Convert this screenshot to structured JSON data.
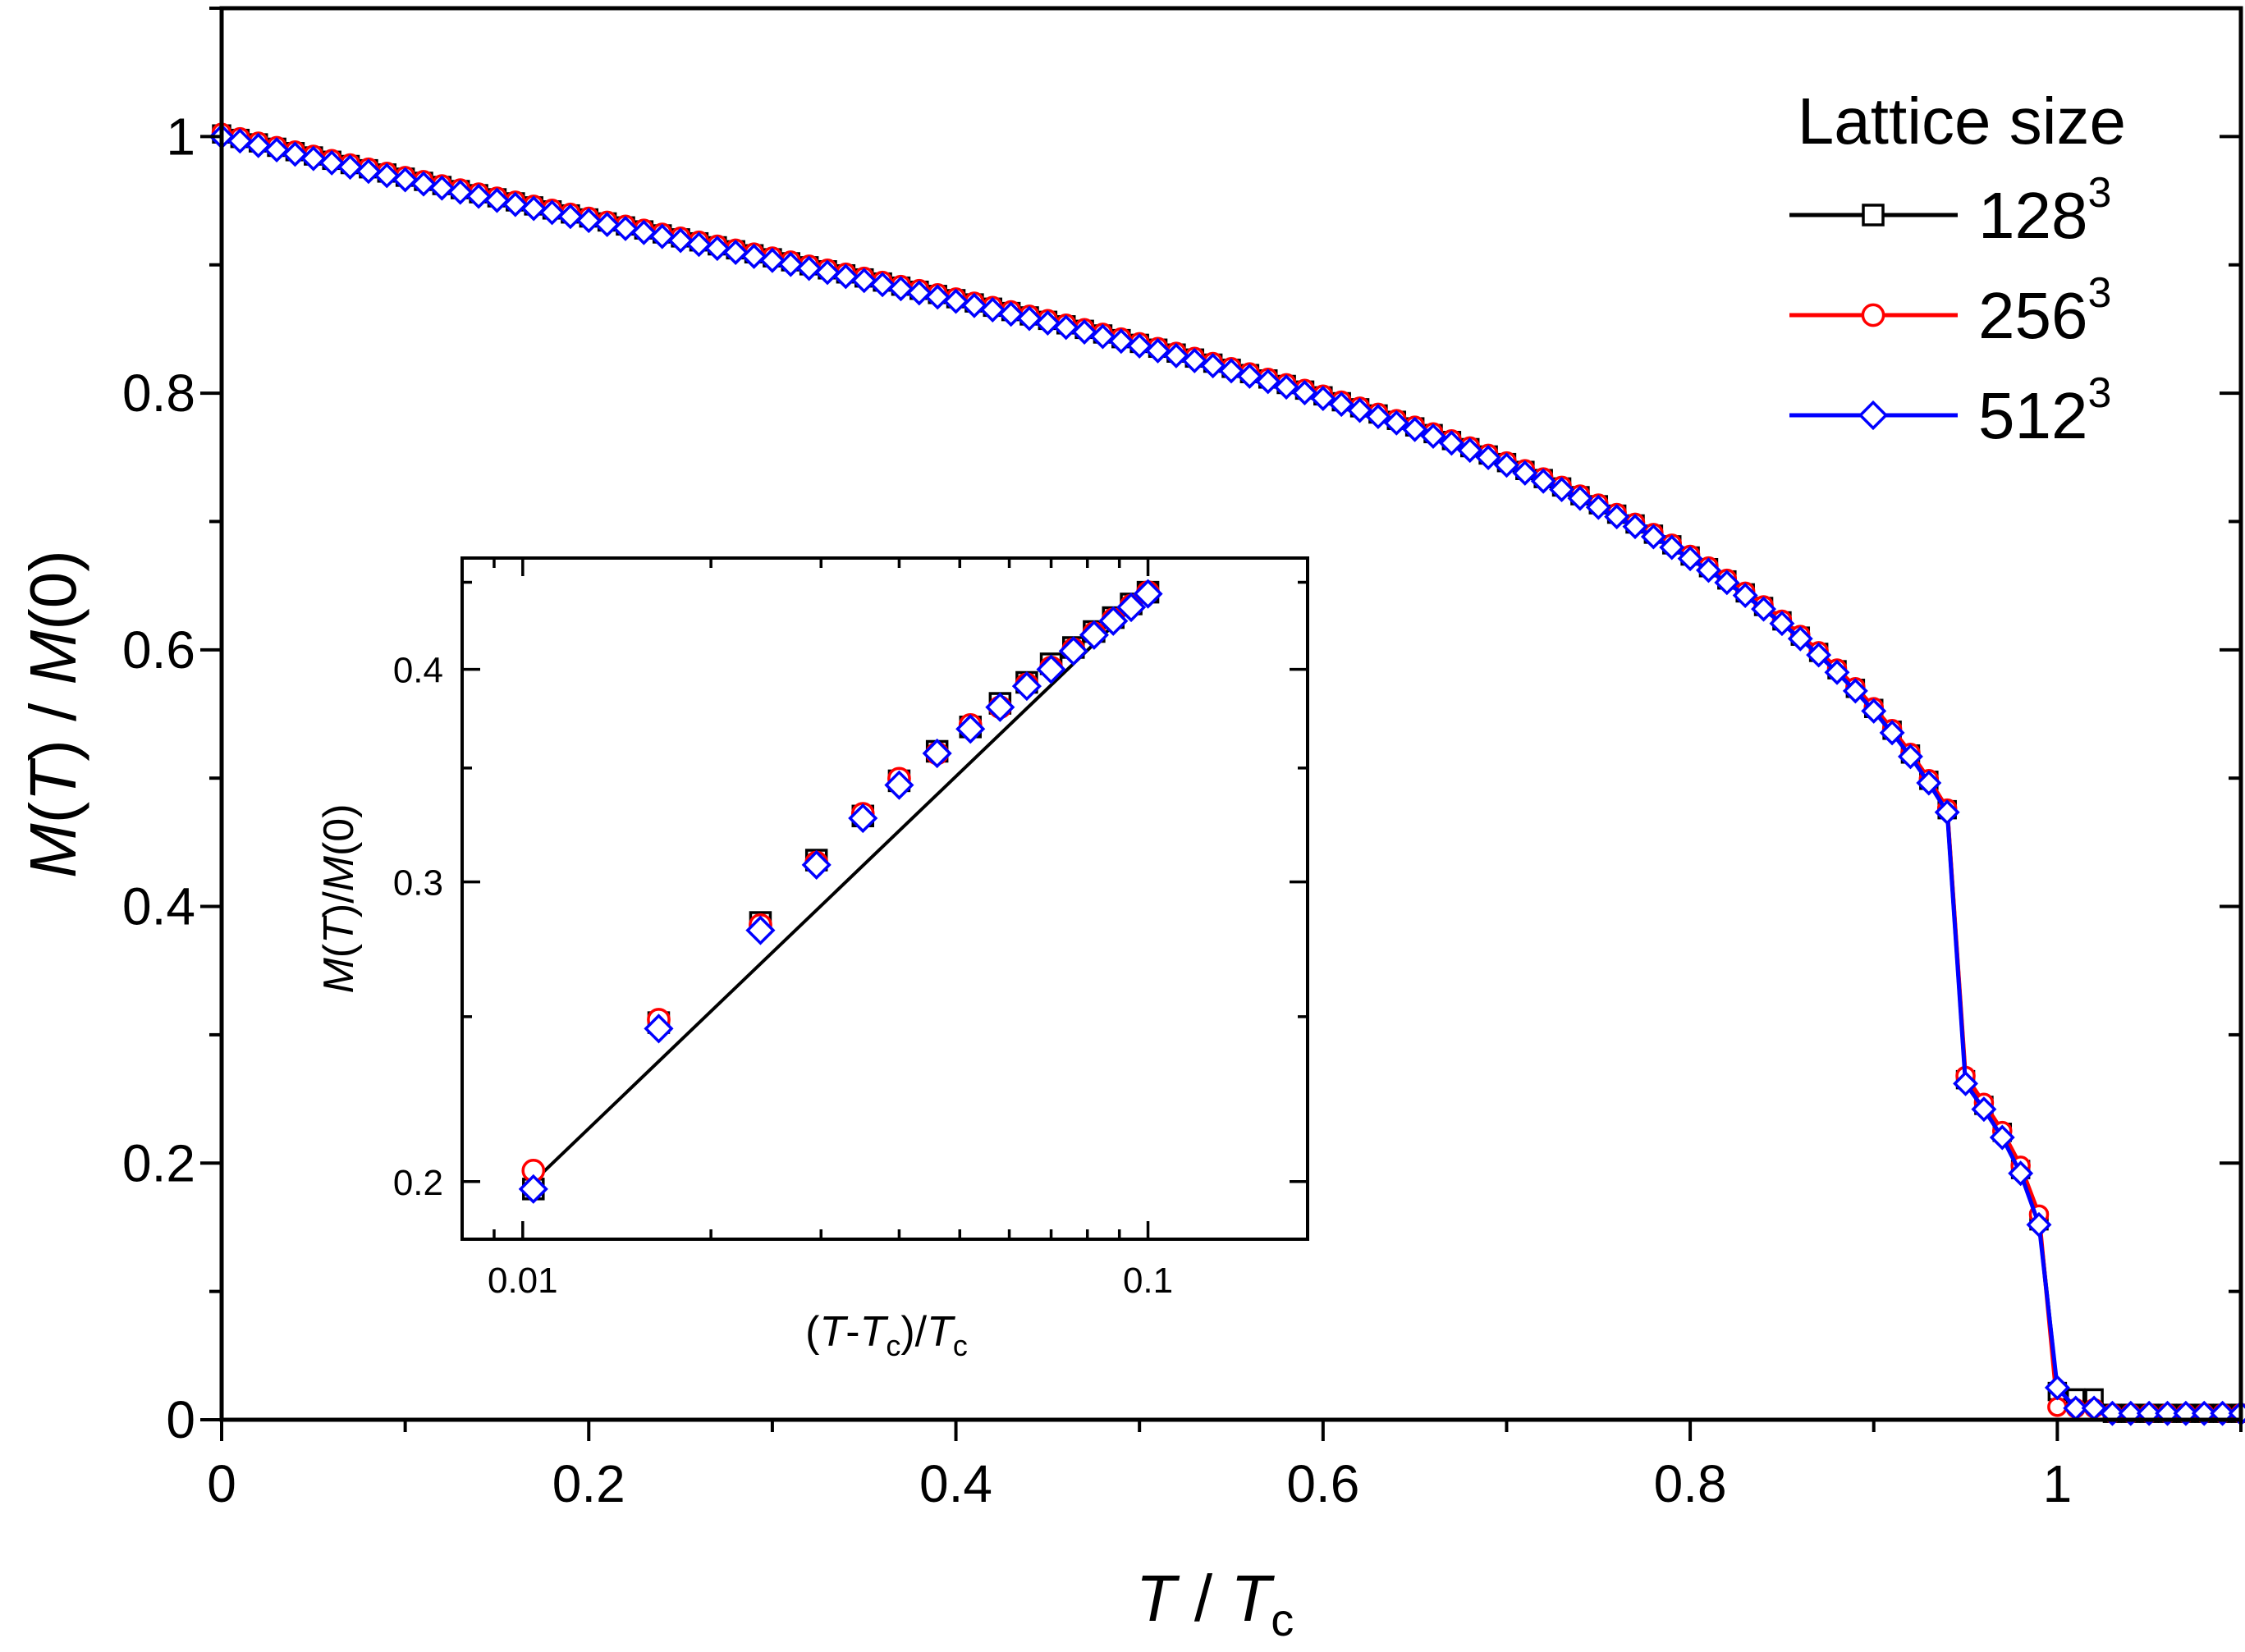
{
  "chart_data": [
    {
      "type": "line",
      "title": "",
      "xlabel": "T / Tc",
      "ylabel": "M(T) / M(0)",
      "xlim": [
        0,
        1.1
      ],
      "ylim": [
        0,
        1.1
      ],
      "x_ticks": [
        "0",
        "0.2",
        "0.4",
        "0.6",
        "0.8",
        "1"
      ],
      "y_ticks": [
        "0",
        "0.2",
        "0.4",
        "0.6",
        "0.8",
        "1"
      ],
      "legend": {
        "title": "Lattice size",
        "position": "top-right",
        "entries": [
          {
            "base": "128",
            "exp": "3",
            "color": "#000000",
            "marker": "square"
          },
          {
            "base": "256",
            "exp": "3",
            "color": "#ff0000",
            "marker": "circle"
          },
          {
            "base": "512",
            "exp": "3",
            "color": "#0000ff",
            "marker": "diamond"
          }
        ]
      },
      "model_curve": {
        "description": "M/M0 = (1 - T/Tc)^0.35 * (1 + 0.2*(T/Tc)) * (1 - 0.08*T/Tc) approx, 0 above Tc",
        "tail_value": 0.005
      },
      "x_step": 0.01,
      "near_tc_points": {
        "x": [
          0.95,
          0.96,
          0.97,
          0.98,
          0.99,
          1.0
        ],
        "128": [
          0.265,
          0.245,
          0.224,
          0.195,
          0.155,
          0.022
        ],
        "256": [
          0.268,
          0.247,
          0.225,
          0.198,
          0.16,
          0.01
        ],
        "512": [
          0.262,
          0.242,
          0.22,
          0.192,
          0.152,
          0.025
        ]
      },
      "series": [
        {
          "name": "128^3",
          "color": "#000000",
          "marker": "square"
        },
        {
          "name": "256^3",
          "color": "#ff0000",
          "marker": "circle"
        },
        {
          "name": "512^3",
          "color": "#0000ff",
          "marker": "diamond"
        }
      ]
    },
    {
      "type": "line",
      "scale": "log-log",
      "xlabel": "(T-Tc)/Tc",
      "ylabel": "M(T)/M(0)",
      "xlim": [
        0.008,
        0.18
      ],
      "ylim": [
        0.185,
        0.465
      ],
      "x_ticks": [
        "0.01",
        "0.1"
      ],
      "y_ticks": [
        "0.2",
        "0.3",
        "0.4"
      ],
      "x": [
        0.0104,
        0.0165,
        0.024,
        0.0295,
        0.035,
        0.04,
        0.046,
        0.052,
        0.058,
        0.064,
        0.07,
        0.076,
        0.082,
        0.088,
        0.094,
        0.1
      ],
      "series": [
        {
          "name": "128^3",
          "color": "#000000",
          "marker": "square",
          "values": [
            0.198,
            0.248,
            0.284,
            0.309,
            0.328,
            0.344,
            0.358,
            0.37,
            0.382,
            0.393,
            0.403,
            0.412,
            0.421,
            0.429,
            0.437,
            0.444
          ]
        },
        {
          "name": "256^3",
          "color": "#ff0000",
          "marker": "circle",
          "values": [
            0.203,
            0.249,
            0.283,
            0.308,
            0.329,
            0.345,
            0.357,
            0.371,
            0.38,
            0.392,
            0.401,
            0.411,
            0.42,
            0.428,
            0.436,
            0.444
          ]
        },
        {
          "name": "512^3",
          "color": "#0000ff",
          "marker": "diamond",
          "values": [
            0.198,
            0.246,
            0.281,
            0.307,
            0.327,
            0.342,
            0.357,
            0.369,
            0.38,
            0.391,
            0.4,
            0.41,
            0.419,
            0.427,
            0.435,
            0.443
          ]
        }
      ],
      "fit_line": {
        "x": [
          0.0104,
          0.1
        ],
        "y": [
          0.2,
          0.444
        ],
        "color": "#000000"
      }
    }
  ],
  "axis_text": {
    "main_x_label_T": "T",
    "main_x_label_sep": " / ",
    "main_x_label_Tc": "T",
    "main_x_label_sub": "c",
    "main_y_label_M": "M",
    "main_y_label_paren1": "(",
    "main_y_label_T": "T",
    "main_y_label_rest": ") / ",
    "main_y_label_M2": "M",
    "main_y_label_zero": "(0)",
    "inset_x_open": "(",
    "inset_x_T": "T",
    "inset_x_minus": "-",
    "inset_x_Tc": "T",
    "inset_x_sub": "c",
    "inset_x_close": ")/",
    "inset_x_T2": "T",
    "inset_x_sub2": "c",
    "inset_y_M": "M",
    "inset_y_open": "(",
    "inset_y_T": "T",
    "inset_y_close": ")/",
    "inset_y_M2": "M",
    "inset_y_zero": "(0)"
  }
}
